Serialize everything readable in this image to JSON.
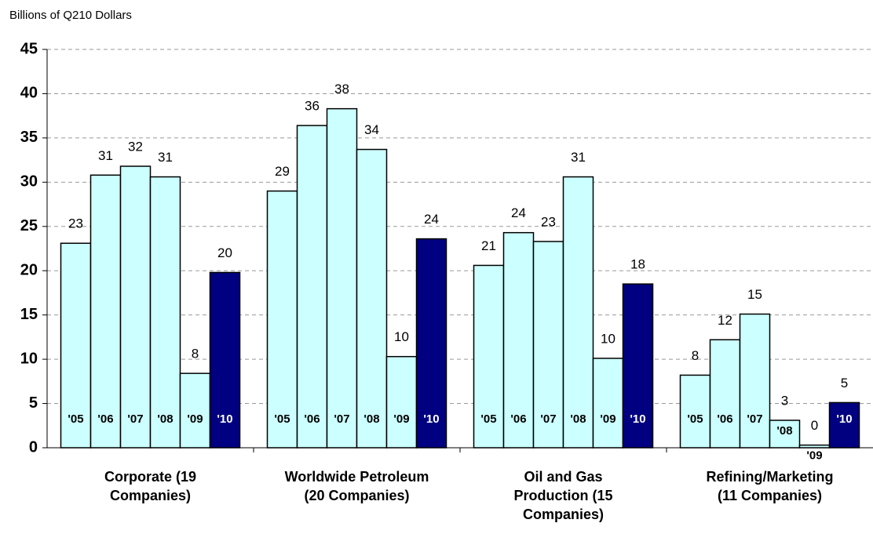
{
  "chart_data": {
    "type": "bar",
    "y_label": "Billions of Q210 Dollars",
    "categories": [
      [
        "Corporate (19",
        "Companies)"
      ],
      [
        "Worldwide Petroleum",
        "(20 Companies)"
      ],
      [
        "Oil and Gas",
        "Production (15",
        "Companies)"
      ],
      [
        "Refining/Marketing",
        "(11 Companies)"
      ]
    ],
    "series": [
      {
        "name": "'05",
        "color": "#ccffff",
        "values": [
          23.1,
          29.0,
          20.6,
          8.2
        ],
        "value_labels": [
          "23",
          "29",
          "21",
          "8"
        ]
      },
      {
        "name": "'06",
        "color": "#ccffff",
        "values": [
          30.8,
          36.4,
          24.3,
          12.2
        ],
        "value_labels": [
          "31",
          "36",
          "24",
          "12"
        ]
      },
      {
        "name": "'07",
        "color": "#ccffff",
        "values": [
          31.8,
          38.3,
          23.3,
          15.1
        ],
        "value_labels": [
          "32",
          "38",
          "23",
          "15"
        ]
      },
      {
        "name": "'08",
        "color": "#ccffff",
        "values": [
          30.6,
          33.7,
          30.6,
          3.1
        ],
        "value_labels": [
          "31",
          "34",
          "31",
          "3"
        ]
      },
      {
        "name": "'09",
        "color": "#ccffff",
        "values": [
          8.4,
          10.3,
          10.1,
          0.3
        ],
        "value_labels": [
          "8",
          "10",
          "10",
          "0"
        ]
      },
      {
        "name": "'10",
        "color": "#000080",
        "values": [
          19.8,
          23.6,
          18.5,
          5.1
        ],
        "value_labels": [
          "20",
          "24",
          "18",
          "5"
        ]
      }
    ],
    "ylim": [
      0,
      45
    ],
    "yticks": [
      0,
      5,
      10,
      15,
      20,
      25,
      30,
      35,
      40,
      45
    ],
    "grid": true
  }
}
